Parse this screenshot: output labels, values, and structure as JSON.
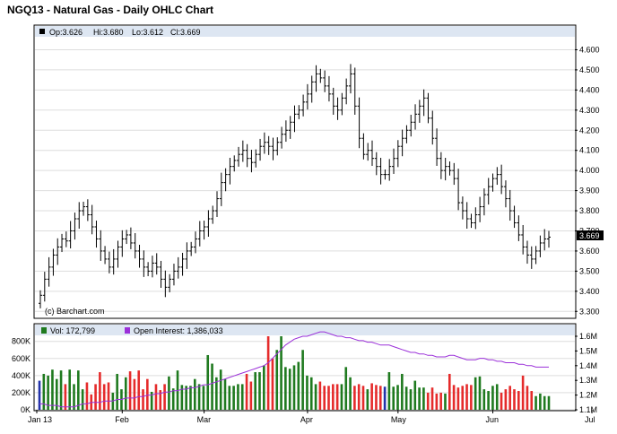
{
  "chart_data": [
    {
      "type": "ohlc",
      "title": "NGQ13 - Natural Gas - Daily OHLC Chart",
      "info": {
        "open": "Op:3.626",
        "high": "Hi:3.680",
        "low": "Lo:3.612",
        "close": "Cl:3.669"
      },
      "last_price": "3.669",
      "credit": "(c) Barchart.com",
      "x_labels": [
        "Jan 13",
        "Feb",
        "Mar",
        "Apr",
        "May",
        "Jun",
        "Jul"
      ],
      "y_ticks": [
        "3.300",
        "3.400",
        "3.500",
        "3.600",
        "3.700",
        "3.800",
        "3.900",
        "4.000",
        "4.100",
        "4.200",
        "4.300",
        "4.400",
        "4.500",
        "4.600"
      ],
      "ylim": [
        3.27,
        4.66
      ],
      "grid": true,
      "closes": [
        3.38,
        3.46,
        3.52,
        3.58,
        3.62,
        3.66,
        3.65,
        3.7,
        3.76,
        3.8,
        3.82,
        3.78,
        3.72,
        3.66,
        3.6,
        3.56,
        3.52,
        3.56,
        3.62,
        3.66,
        3.68,
        3.64,
        3.6,
        3.56,
        3.52,
        3.5,
        3.54,
        3.52,
        3.46,
        3.42,
        3.46,
        3.5,
        3.52,
        3.56,
        3.6,
        3.62,
        3.66,
        3.7,
        3.72,
        3.76,
        3.8,
        3.86,
        3.94,
        3.98,
        4.02,
        4.05,
        4.08,
        4.1,
        4.06,
        4.04,
        4.08,
        4.12,
        4.14,
        4.12,
        4.1,
        4.14,
        4.18,
        4.2,
        4.24,
        4.28,
        4.3,
        4.34,
        4.38,
        4.44,
        4.48,
        4.46,
        4.42,
        4.38,
        4.32,
        4.3,
        4.36,
        4.42,
        4.48,
        4.32,
        4.16,
        4.08,
        4.1,
        4.06,
        4.02,
        3.98,
        3.98,
        4.02,
        4.06,
        4.12,
        4.16,
        4.2,
        4.24,
        4.28,
        4.32,
        4.36,
        4.26,
        4.16,
        4.06,
        4.0,
        4.02,
        4.0,
        3.96,
        3.84,
        3.8,
        3.76,
        3.74,
        3.78,
        3.82,
        3.88,
        3.92,
        3.96,
        3.98,
        3.92,
        3.86,
        3.8,
        3.74,
        3.68,
        3.62,
        3.58,
        3.56,
        3.6,
        3.64,
        3.66,
        3.669
      ]
    },
    {
      "type": "bar+line",
      "legend": [
        {
          "name": "Vol: 172,799",
          "color": "#1f7a1f"
        },
        {
          "name": "Open Interest: 1,386,033",
          "color": "#9b30d9"
        }
      ],
      "left_ticks": [
        "0K",
        "200K",
        "400K",
        "600K",
        "800K"
      ],
      "right_ticks": [
        "1.1M",
        "1.2M",
        "1.3M",
        "1.4M",
        "1.5M",
        "1.6M"
      ],
      "volume_k": [
        340,
        420,
        400,
        470,
        360,
        460,
        300,
        470,
        300,
        460,
        240,
        320,
        180,
        300,
        440,
        300,
        320,
        200,
        420,
        240,
        380,
        450,
        360,
        460,
        240,
        360,
        210,
        300,
        230,
        300,
        390,
        250,
        460,
        290,
        280,
        280,
        360,
        300,
        280,
        640,
        540,
        380,
        470,
        360,
        280,
        280,
        300,
        300,
        420,
        330,
        440,
        440,
        520,
        900,
        600,
        700,
        880,
        500,
        480,
        520,
        560,
        700,
        400,
        380,
        300,
        330,
        280,
        280,
        300,
        300,
        300,
        500,
        380,
        280,
        300,
        280,
        240,
        310,
        290,
        280,
        270,
        440,
        270,
        290,
        420,
        270,
        240,
        340,
        260,
        260,
        200,
        260,
        190,
        200,
        190,
        420,
        290,
        260,
        280,
        300,
        290,
        380,
        390,
        240,
        220,
        280,
        300,
        200,
        240,
        280,
        240,
        220,
        400,
        280,
        220,
        160,
        190,
        160,
        160
      ],
      "open_interest_m": [
        1.14,
        1.14,
        1.13,
        1.13,
        1.13,
        1.12,
        1.12,
        1.12,
        1.12,
        1.13,
        1.14,
        1.14,
        1.15,
        1.15,
        1.15,
        1.16,
        1.16,
        1.16,
        1.17,
        1.17,
        1.18,
        1.18,
        1.18,
        1.19,
        1.19,
        1.2,
        1.2,
        1.21,
        1.21,
        1.22,
        1.22,
        1.23,
        1.23,
        1.24,
        1.24,
        1.25,
        1.25,
        1.26,
        1.27,
        1.27,
        1.28,
        1.29,
        1.3,
        1.31,
        1.32,
        1.33,
        1.34,
        1.35,
        1.36,
        1.37,
        1.38,
        1.39,
        1.4,
        1.42,
        1.45,
        1.48,
        1.51,
        1.54,
        1.56,
        1.58,
        1.59,
        1.6,
        1.6,
        1.61,
        1.62,
        1.63,
        1.63,
        1.62,
        1.61,
        1.6,
        1.6,
        1.59,
        1.59,
        1.58,
        1.57,
        1.57,
        1.56,
        1.56,
        1.55,
        1.54,
        1.54,
        1.54,
        1.53,
        1.52,
        1.51,
        1.5,
        1.49,
        1.49,
        1.48,
        1.48,
        1.47,
        1.47,
        1.46,
        1.46,
        1.46,
        1.47,
        1.47,
        1.46,
        1.45,
        1.44,
        1.44,
        1.44,
        1.45,
        1.45,
        1.44,
        1.44,
        1.43,
        1.43,
        1.42,
        1.42,
        1.42,
        1.41,
        1.41,
        1.4,
        1.4,
        1.39,
        1.39,
        1.39,
        1.39
      ],
      "xlim": [
        "Jan 13",
        "Jul"
      ]
    }
  ],
  "colors": {
    "up": "#1f7a1f",
    "down": "#e52b2b",
    "neutral": "#2233aa",
    "oi": "#9b30d9",
    "grid": "#dddddd",
    "bar_fill": "#ffffff"
  }
}
